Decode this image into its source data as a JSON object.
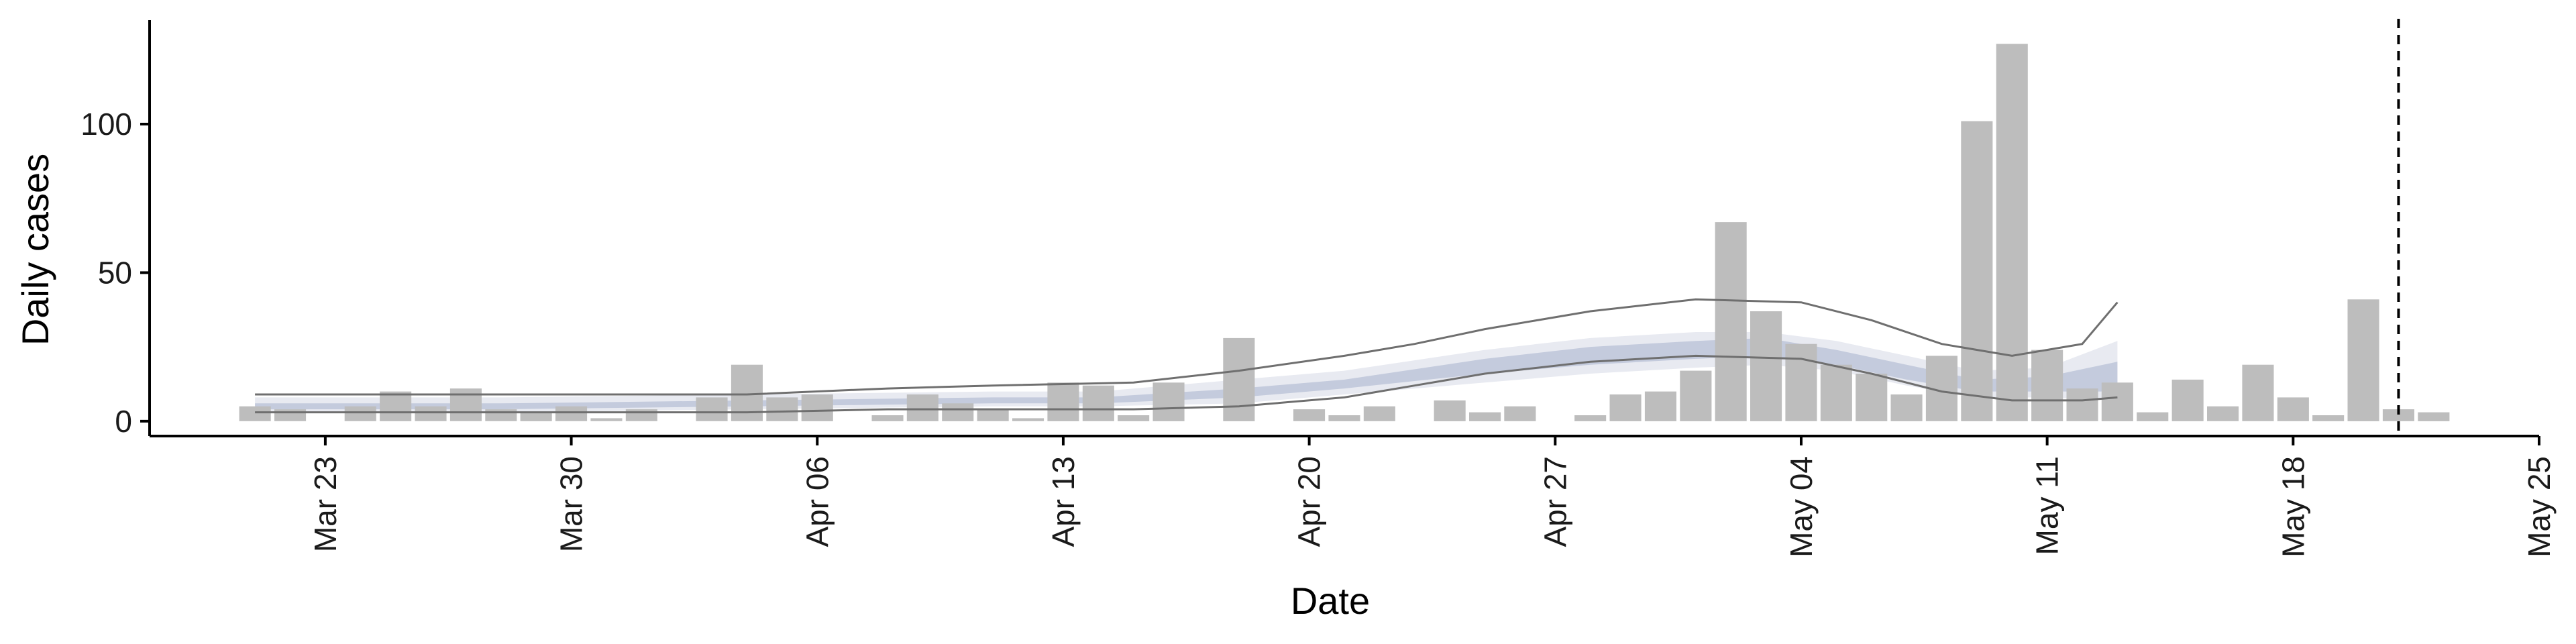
{
  "chart_data": {
    "type": "bar",
    "xlabel": "Date",
    "ylabel": "Daily cases",
    "ylim": [
      -5,
      135
    ],
    "yticks": [
      0,
      50,
      100
    ],
    "xlim": [
      "2020-03-18",
      "2020-05-25"
    ],
    "xticks": [
      {
        "date": "2020-03-23",
        "label": "Mar 23"
      },
      {
        "date": "2020-03-30",
        "label": "Mar 30"
      },
      {
        "date": "2020-04-06",
        "label": "Apr 06"
      },
      {
        "date": "2020-04-13",
        "label": "Apr 13"
      },
      {
        "date": "2020-04-20",
        "label": "Apr 20"
      },
      {
        "date": "2020-04-27",
        "label": "Apr 27"
      },
      {
        "date": "2020-05-04",
        "label": "May 04"
      },
      {
        "date": "2020-05-11",
        "label": "May 11"
      },
      {
        "date": "2020-05-18",
        "label": "May 18"
      },
      {
        "date": "2020-05-25",
        "label": "May 25"
      }
    ],
    "grid": false,
    "legend": "none",
    "colors": {
      "bars": "#bdbdbd",
      "band_outer": "#e8eaf1",
      "band_inner": "#c4cbdd",
      "bounds_line": "#6f6f6f",
      "vline": "#000000"
    },
    "vline_date": "2020-05-21",
    "start_date": "2020-03-21",
    "series": [
      {
        "type": "bar",
        "values": [
          5,
          4,
          0,
          5,
          10,
          5,
          11,
          4,
          3,
          5,
          1,
          4,
          0,
          8,
          19,
          8,
          9,
          0,
          2,
          9,
          6,
          4,
          1,
          13,
          12,
          2,
          13,
          0,
          28,
          0,
          4,
          2,
          5,
          0,
          7,
          3,
          5,
          0,
          2,
          9,
          10,
          17,
          67,
          37,
          26,
          19,
          16,
          9,
          22,
          101,
          127,
          24,
          11,
          13,
          3,
          14,
          5,
          19,
          8,
          2,
          41,
          4,
          3
        ]
      },
      {
        "type": "band",
        "dates": [
          "2020-03-21",
          "2020-03-28",
          "2020-04-04",
          "2020-04-11",
          "2020-04-14",
          "2020-04-18",
          "2020-04-21",
          "2020-04-25",
          "2020-04-28",
          "2020-05-01",
          "2020-05-03",
          "2020-05-05",
          "2020-05-07",
          "2020-05-09",
          "2020-05-11",
          "2020-05-13"
        ],
        "outer_upper": [
          8,
          8,
          9,
          10,
          10,
          14,
          17,
          24,
          28,
          30,
          30,
          27,
          22,
          17,
          18,
          27
        ],
        "outer_lower": [
          3,
          3,
          4,
          5,
          5,
          6,
          9,
          13,
          16,
          18,
          19,
          17,
          12,
          8,
          8,
          7
        ],
        "inner_upper": [
          6,
          6,
          7,
          8,
          8,
          11,
          14,
          21,
          25,
          27,
          28,
          24,
          19,
          14,
          15,
          20
        ],
        "inner_lower": [
          4,
          4,
          5,
          6,
          6,
          8,
          11,
          16,
          19,
          21,
          22,
          19,
          14,
          10,
          10,
          10
        ]
      },
      {
        "type": "line",
        "dates": [
          "2020-03-21",
          "2020-03-28",
          "2020-04-04",
          "2020-04-08",
          "2020-04-11",
          "2020-04-15",
          "2020-04-18",
          "2020-04-21",
          "2020-04-23",
          "2020-04-25",
          "2020-04-28",
          "2020-05-01",
          "2020-05-04",
          "2020-05-06",
          "2020-05-08",
          "2020-05-10",
          "2020-05-12",
          "2020-05-13"
        ],
        "upper": [
          9,
          9,
          9,
          11,
          12,
          13,
          17,
          22,
          26,
          31,
          37,
          41,
          40,
          34,
          26,
          22,
          26,
          40
        ],
        "lower": [
          3,
          3,
          3,
          4,
          4,
          4,
          5,
          8,
          12,
          16,
          20,
          22,
          21,
          16,
          10,
          7,
          7,
          8
        ]
      }
    ]
  }
}
